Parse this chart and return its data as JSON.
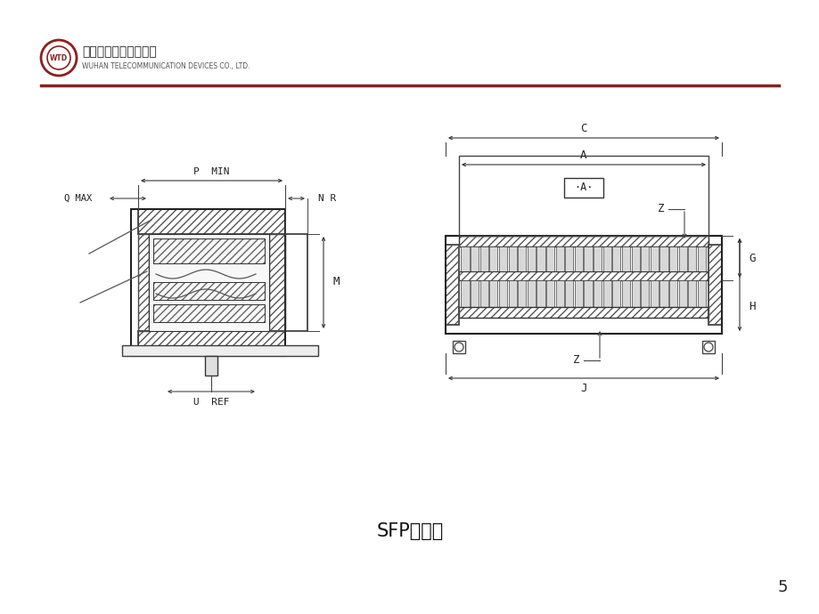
{
  "bg_color": "#ffffff",
  "header_line_color": "#8B2020",
  "company_name_en": "WUHAN TELECOMMUNICATION DEVICES CO., LTD.",
  "caption": "SFP连接器",
  "page_number": "5"
}
